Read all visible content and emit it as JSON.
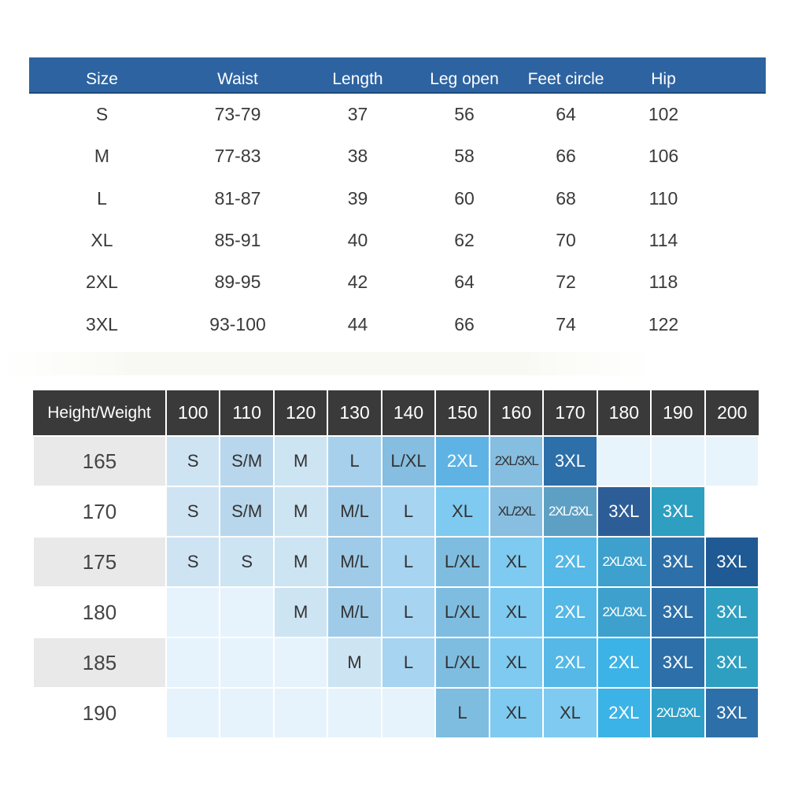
{
  "size_chart": {
    "headers": [
      "Size",
      "Waist",
      "Length",
      "Leg open",
      "Feet circle",
      "Hip",
      ""
    ],
    "rows": [
      [
        "S",
        "73-79",
        "37",
        "56",
        "64",
        "102",
        ""
      ],
      [
        "M",
        "77-83",
        "38",
        "58",
        "66",
        "106",
        ""
      ],
      [
        "L",
        "81-87",
        "39",
        "60",
        "68",
        "110",
        ""
      ],
      [
        "XL",
        "85-91",
        "40",
        "62",
        "70",
        "114",
        ""
      ],
      [
        "2XL",
        "89-95",
        "42",
        "64",
        "72",
        "118",
        ""
      ],
      [
        "3XL",
        "93-100",
        "44",
        "66",
        "74",
        "122",
        ""
      ]
    ]
  },
  "hw_chart": {
    "corner_label": "Height/Weight",
    "weights": [
      "100",
      "110",
      "120",
      "130",
      "140",
      "150",
      "160",
      "170",
      "180",
      "190",
      "200"
    ],
    "heights": [
      "165",
      "170",
      "175",
      "180",
      "185",
      "190"
    ],
    "cells": [
      [
        "S",
        "S/M",
        "M",
        "L",
        "L/XL",
        "2XL",
        "2XL/3XL",
        "3XL",
        "",
        "",
        ""
      ],
      [
        "S",
        "S/M",
        "M",
        "M/L",
        "L",
        "XL",
        "XL/2XL",
        "2XL/3XL",
        "3XL",
        "3XL",
        ""
      ],
      [
        "S",
        "S",
        "M",
        "M/L",
        "L",
        "L/XL",
        "XL",
        "2XL",
        "2XL/3XL",
        "3XL",
        "3XL"
      ],
      [
        "",
        "",
        "M",
        "M/L",
        "L",
        "L/XL",
        "XL",
        "2XL",
        "2XL/3XL",
        "3XL",
        "3XL"
      ],
      [
        "",
        "",
        "",
        "M",
        "L",
        "L/XL",
        "XL",
        "2XL",
        "2XL",
        "3XL",
        "3XL"
      ],
      [
        "",
        "",
        "",
        "",
        "",
        "L",
        "XL",
        "XL",
        "2XL",
        "2XL/3XL",
        "3XL"
      ]
    ],
    "colors": [
      [
        "#cfe4f3",
        "#b9d7ec",
        "#cde4f3",
        "#a7d0ec",
        "#85bee0",
        "#5eb3e4",
        "#85bee0",
        "#2d6fa8",
        "#e8f4fc",
        "#e8f4fc",
        "#e8f4fc"
      ],
      [
        "#cfe4f3",
        "#b9d7ec",
        "#cde4f3",
        "#9fcbe8",
        "#a7d4f0",
        "#7ecaf0",
        "#88bee0",
        "#5da0c4",
        "#2d5d96",
        "#2e9fc1",
        "#ffffff"
      ],
      [
        "#cfe4f3",
        "#cde4f3",
        "#cde4f3",
        "#9fcbe8",
        "#a7d4f0",
        "#7ebde0",
        "#7ecaf0",
        "#55b8e6",
        "#3ea0cc",
        "#2d6fa8",
        "#1f5a94"
      ],
      [
        "#e6f3fc",
        "#e6f3fc",
        "#cde4f3",
        "#9fcbe8",
        "#a7d4f0",
        "#7ebde0",
        "#7ecaf0",
        "#55b8e6",
        "#3ea0cc",
        "#2d6fa8",
        "#2e9fc1"
      ],
      [
        "#e6f3fc",
        "#e6f3fc",
        "#e6f3fc",
        "#cde4f3",
        "#a7d4f0",
        "#7ebde0",
        "#7ecaf0",
        "#55b8e6",
        "#3cb3e6",
        "#2d6fa8",
        "#2e9fc1"
      ],
      [
        "#e6f3fc",
        "#e6f3fc",
        "#e6f3fc",
        "#e6f3fc",
        "#e6f3fc",
        "#7ebde0",
        "#7ecaf0",
        "#7ecaf0",
        "#3cb3e6",
        "#2d9fc8",
        "#2d6fa8"
      ]
    ],
    "text_colors": {
      "dark": "#333333",
      "light": "#ffffff"
    }
  }
}
